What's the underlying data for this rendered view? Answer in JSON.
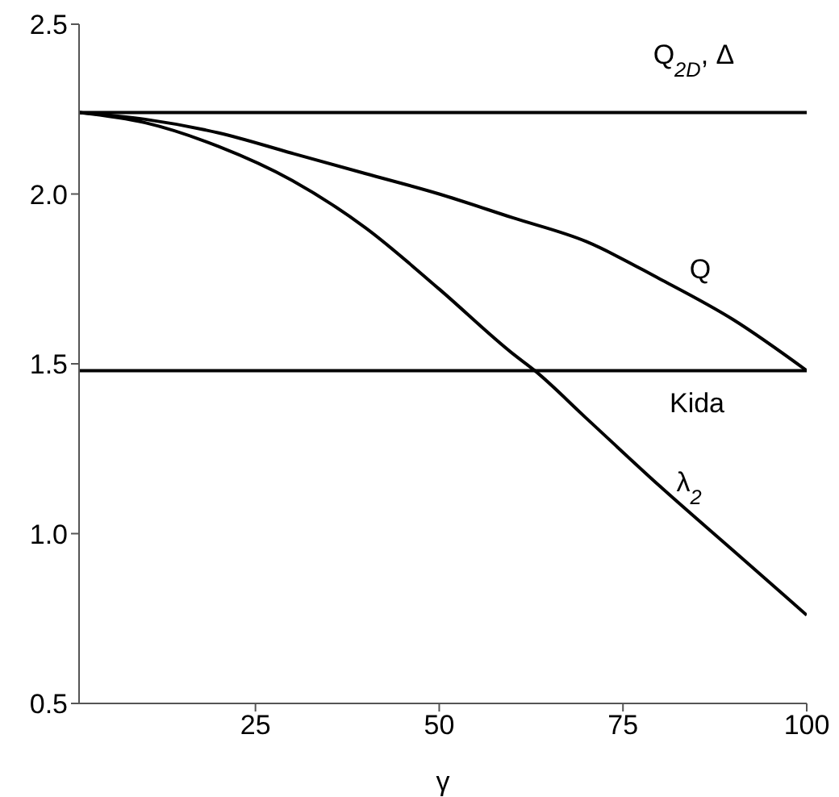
{
  "chart_data": {
    "type": "line",
    "xlabel": "γ",
    "xlim": [
      1,
      100
    ],
    "xticks": [
      25,
      50,
      75,
      100
    ],
    "ylim": [
      0.5,
      2.5
    ],
    "yticks": [
      0.5,
      {
        "value": 1,
        "label": "1.0"
      },
      1.5,
      {
        "value": 2,
        "label": "2.0"
      },
      2.5
    ],
    "grid": false,
    "series": [
      {
        "name": "Q$_{2D}$, Δ",
        "color": "#000000",
        "x": [
          1,
          100
        ],
        "values": [
          2.24,
          2.24
        ]
      },
      {
        "name": "Q",
        "color": "#000000",
        "x": [
          1,
          10,
          20,
          30,
          40,
          50,
          60,
          70,
          80,
          90,
          100
        ],
        "values": [
          2.24,
          2.22,
          2.18,
          2.12,
          2.06,
          2.0,
          1.93,
          1.86,
          1.75,
          1.63,
          1.48
        ]
      },
      {
        "name": "Kida",
        "color": "#000000",
        "x": [
          1,
          100
        ],
        "values": [
          1.48,
          1.48
        ]
      },
      {
        "name": "λ$_{2}$",
        "color": "#000000",
        "x": [
          1,
          10,
          20,
          30,
          40,
          50,
          60,
          63,
          70,
          80,
          90,
          100
        ],
        "values": [
          2.24,
          2.21,
          2.14,
          2.04,
          1.9,
          1.72,
          1.53,
          1.48,
          1.34,
          1.14,
          0.95,
          0.76
        ]
      }
    ]
  }
}
